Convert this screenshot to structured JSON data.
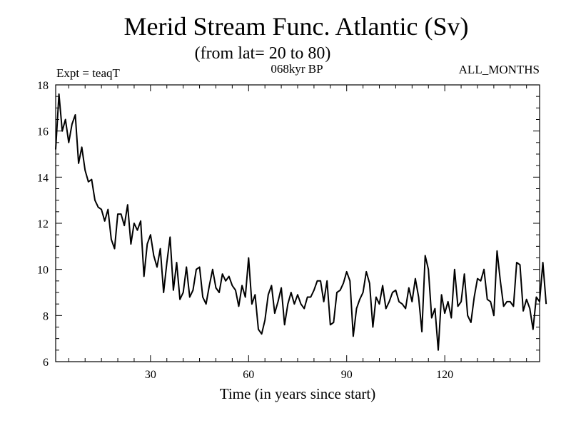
{
  "chart_data": {
    "type": "line",
    "title": "Merid Stream Func. Atlantic (Sv)",
    "subtitle": "(from lat= 20 to 80)",
    "experiment_label": "Expt = teaqT",
    "period_label": "068kyr BP",
    "months_label": "ALL_MONTHS",
    "xlabel": "Time (in years since start)",
    "ylabel": "",
    "xlim": [
      1,
      149
    ],
    "ylim": [
      6,
      18
    ],
    "x_ticks": [
      30,
      60,
      90,
      120
    ],
    "y_ticks": [
      6,
      8,
      10,
      12,
      14,
      16,
      18
    ],
    "grid": false,
    "series": [
      {
        "name": "Merid Stream Func. Atlantic",
        "x_start": 1,
        "x_step": 1,
        "values": [
          15.2,
          17.6,
          16.0,
          16.5,
          15.5,
          16.3,
          16.7,
          14.6,
          15.3,
          14.3,
          13.8,
          13.9,
          13.0,
          12.7,
          12.6,
          12.1,
          12.6,
          11.3,
          10.9,
          12.4,
          12.4,
          11.9,
          12.8,
          11.1,
          12.0,
          11.7,
          12.1,
          9.7,
          11.1,
          11.5,
          10.6,
          10.1,
          10.9,
          9.0,
          10.3,
          11.4,
          9.1,
          10.3,
          8.7,
          9.0,
          10.1,
          8.8,
          9.1,
          10.0,
          10.1,
          8.8,
          8.5,
          9.3,
          10.0,
          9.2,
          9.0,
          9.8,
          9.5,
          9.7,
          9.3,
          9.1,
          8.4,
          9.3,
          8.8,
          10.5,
          8.5,
          8.9,
          7.4,
          7.2,
          7.8,
          8.9,
          9.3,
          8.1,
          8.6,
          9.2,
          7.6,
          8.5,
          9.0,
          8.5,
          8.9,
          8.5,
          8.3,
          8.8,
          8.8,
          9.1,
          9.5,
          9.5,
          8.6,
          9.5,
          7.6,
          7.7,
          9.0,
          9.1,
          9.4,
          9.9,
          9.5,
          7.1,
          8.3,
          8.7,
          9.0,
          9.9,
          9.4,
          7.5,
          8.8,
          8.5,
          9.3,
          8.3,
          8.6,
          9.0,
          9.1,
          8.6,
          8.5,
          8.3,
          9.2,
          8.6,
          9.6,
          8.8,
          7.3,
          10.6,
          10.0,
          7.9,
          8.3,
          6.5,
          8.9,
          8.1,
          8.6,
          7.9,
          10.0,
          8.4,
          8.6,
          9.8,
          8.0,
          7.7,
          8.8,
          9.6,
          9.5,
          10.0,
          8.7,
          8.6,
          8.0,
          10.8,
          9.5,
          8.4,
          8.6,
          8.6,
          8.4,
          10.3,
          10.2,
          8.2,
          8.7,
          8.3,
          7.4,
          8.8,
          8.6,
          10.3,
          8.5
        ]
      }
    ]
  }
}
